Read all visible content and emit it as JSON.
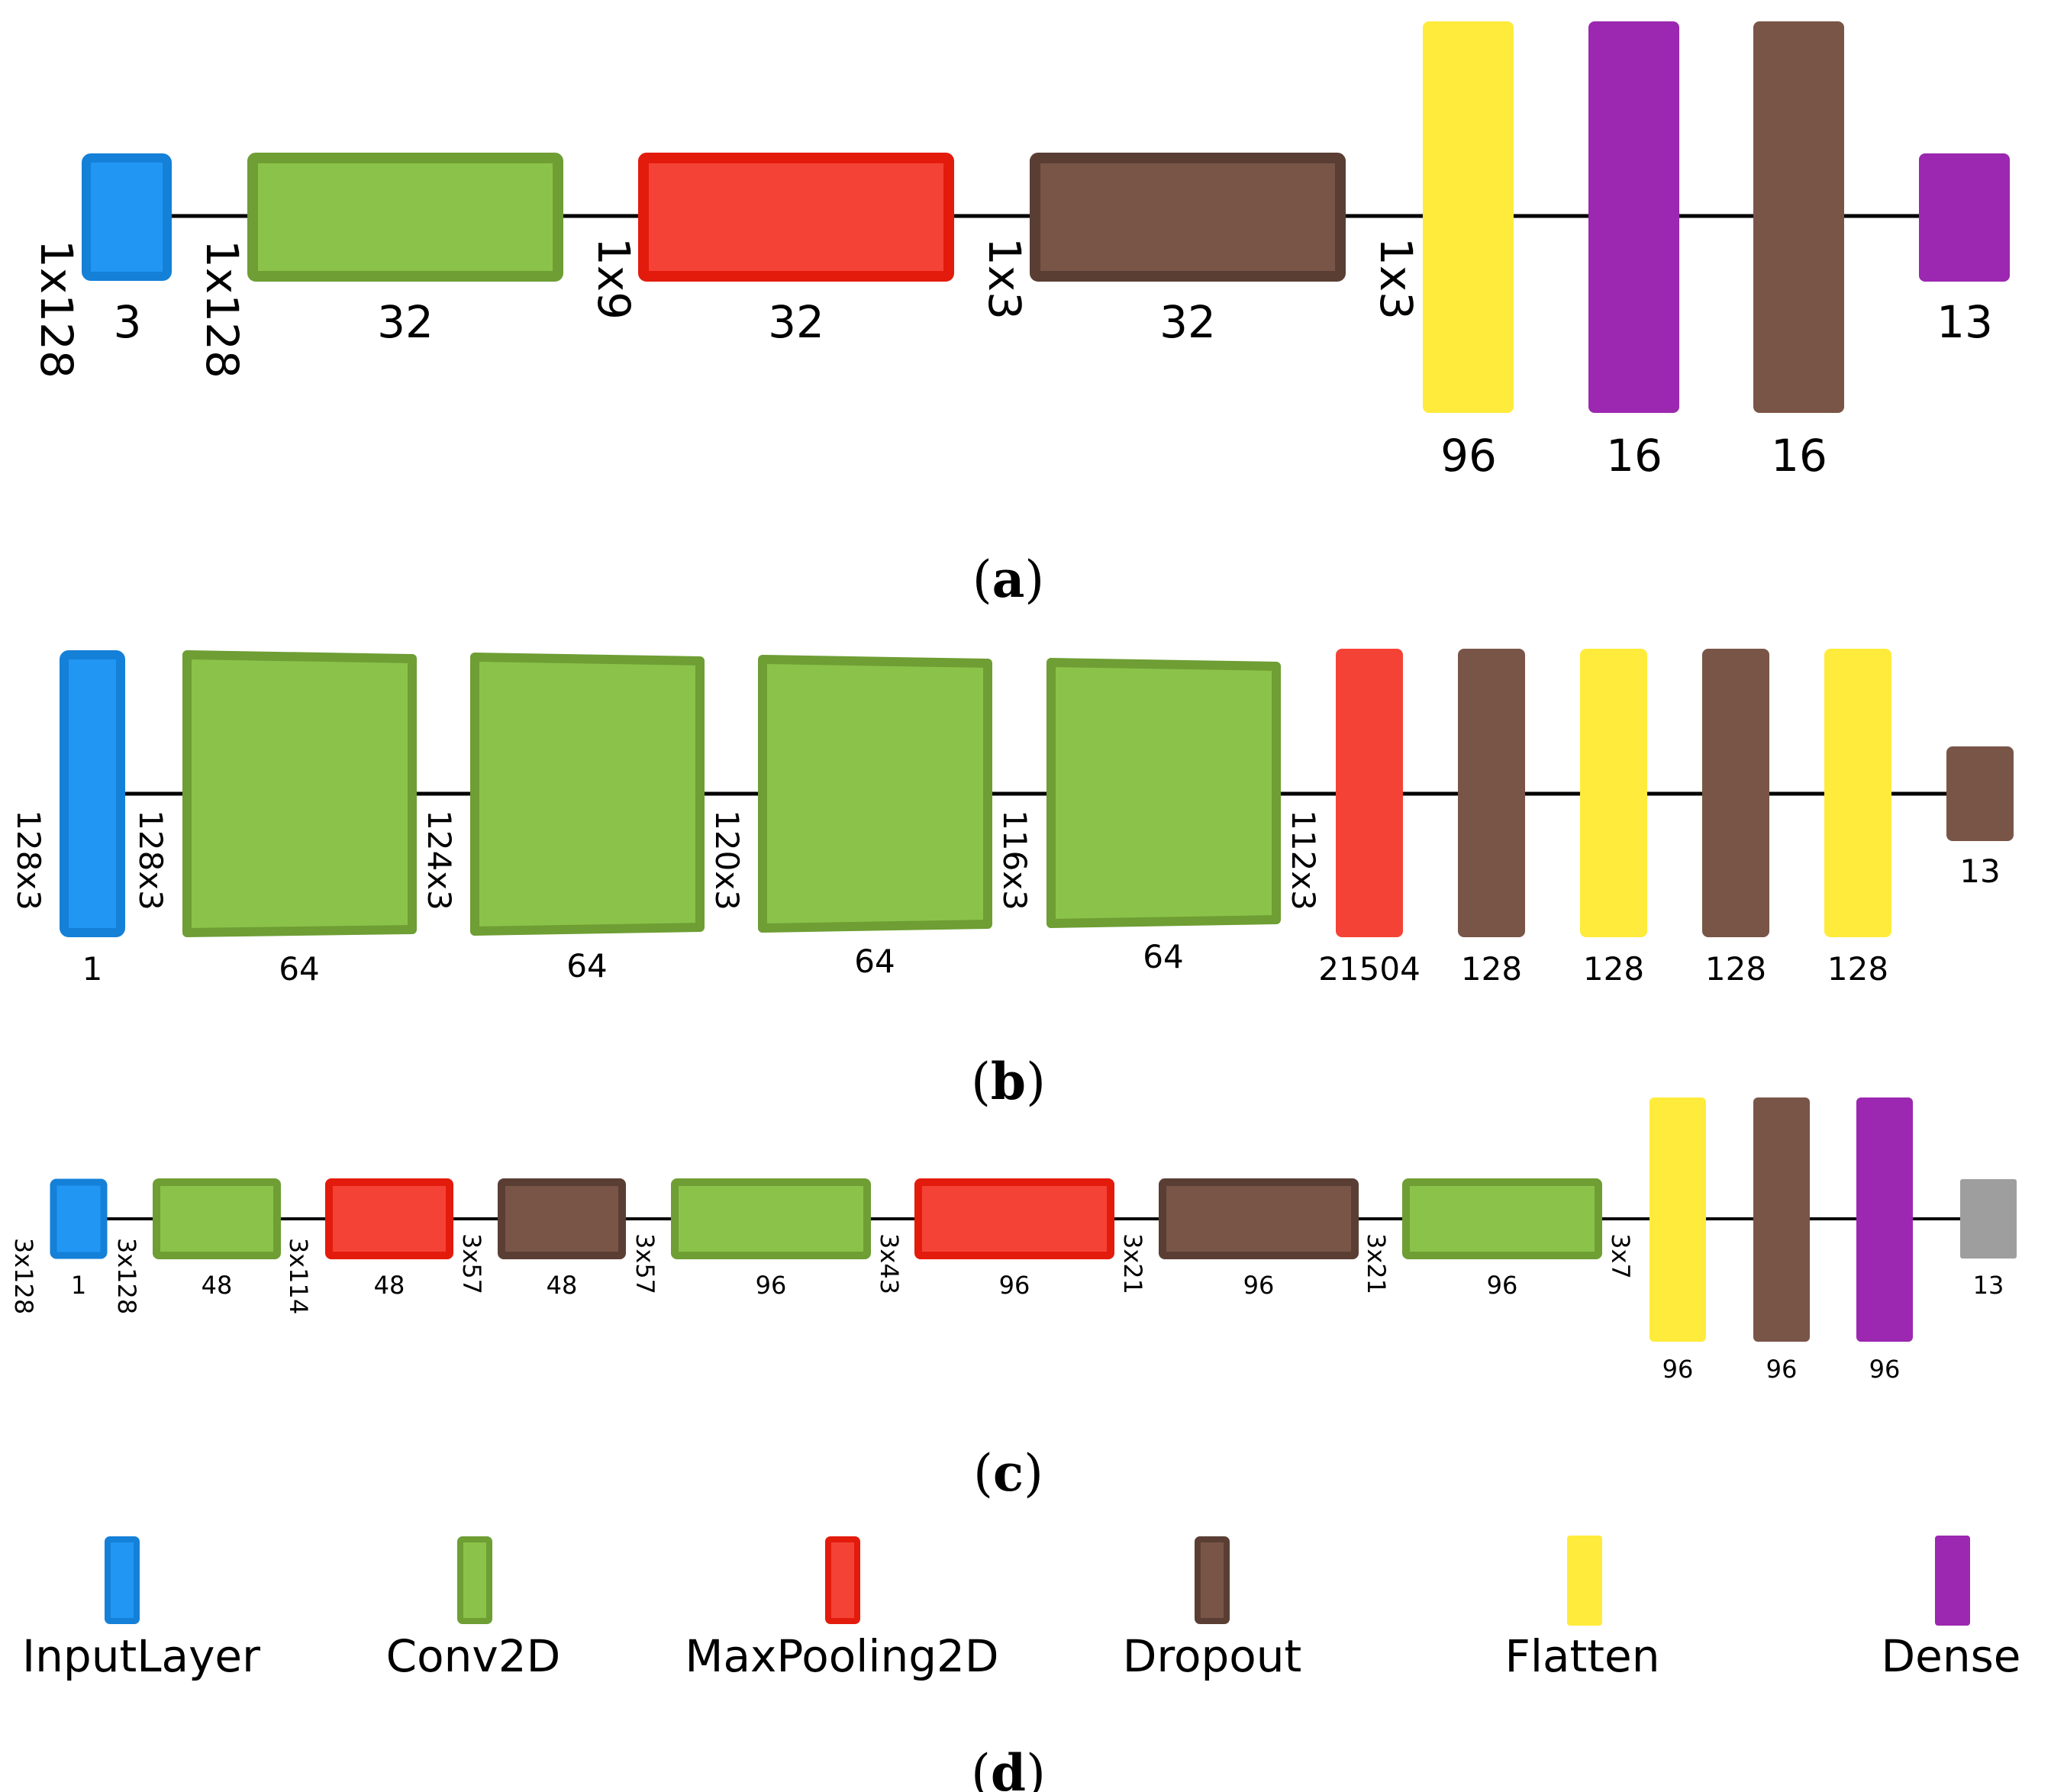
{
  "colors": {
    "input": "#2196F3",
    "input_border": "#1480D8",
    "conv": "#8BC34A",
    "conv_border": "#6E9E34",
    "pool": "#F44336",
    "pool_border": "#E31B0C",
    "dropout": "#795548",
    "dropout_border": "#5A3E34",
    "flatten": "#FFEB3B",
    "dense": "#9C27B0",
    "gray": "#9E9E9E"
  },
  "panel_a": {
    "caption_letter": "a",
    "shapes": [
      "1x128",
      "1x128",
      "1x9",
      "1x3",
      "1x3"
    ],
    "layers": [
      {
        "type": "input",
        "units": "3"
      },
      {
        "type": "conv",
        "units": "32"
      },
      {
        "type": "pool",
        "units": "32"
      },
      {
        "type": "dropout",
        "units": "32"
      },
      {
        "type": "flatten",
        "units": "96"
      },
      {
        "type": "dense",
        "units": "16"
      },
      {
        "type": "dropout",
        "units": "16"
      },
      {
        "type": "dense",
        "units": "13"
      }
    ]
  },
  "panel_b": {
    "caption_letter": "b",
    "shapes": [
      "128x3",
      "128x3",
      "124x3",
      "120x3",
      "116x3",
      "112x3"
    ],
    "layers": [
      {
        "type": "input",
        "units": "1"
      },
      {
        "type": "conv",
        "units": "64"
      },
      {
        "type": "conv",
        "units": "64"
      },
      {
        "type": "conv",
        "units": "64"
      },
      {
        "type": "conv",
        "units": "64"
      },
      {
        "type": "pool",
        "units": "21504"
      },
      {
        "type": "dropout",
        "units": "128"
      },
      {
        "type": "flatten",
        "units": "128"
      },
      {
        "type": "dropout",
        "units": "128"
      },
      {
        "type": "flatten",
        "units": "128"
      },
      {
        "type": "dropout",
        "units": "13"
      }
    ]
  },
  "panel_c": {
    "caption_letter": "c",
    "shapes": [
      "3x128",
      "3x128",
      "3x114",
      "3x57",
      "3x57",
      "3x43",
      "3x21",
      "3x21",
      "3x7"
    ],
    "layers": [
      {
        "type": "input",
        "units": "1"
      },
      {
        "type": "conv",
        "units": "48"
      },
      {
        "type": "pool",
        "units": "48"
      },
      {
        "type": "dropout",
        "units": "48"
      },
      {
        "type": "conv",
        "units": "96"
      },
      {
        "type": "pool",
        "units": "96"
      },
      {
        "type": "dropout",
        "units": "96"
      },
      {
        "type": "conv",
        "units": "96"
      },
      {
        "type": "flatten",
        "units": "96"
      },
      {
        "type": "dropout",
        "units": "96"
      },
      {
        "type": "dense",
        "units": "96"
      },
      {
        "type": "gray",
        "units": "13"
      }
    ]
  },
  "legend": {
    "caption_letter": "d",
    "items": [
      {
        "type": "input",
        "label": "InputLayer"
      },
      {
        "type": "conv",
        "label": "Conv2D"
      },
      {
        "type": "pool",
        "label": "MaxPooling2D"
      },
      {
        "type": "dropout",
        "label": "Dropout"
      },
      {
        "type": "flatten",
        "label": "Flatten"
      },
      {
        "type": "dense",
        "label": "Dense"
      }
    ]
  }
}
